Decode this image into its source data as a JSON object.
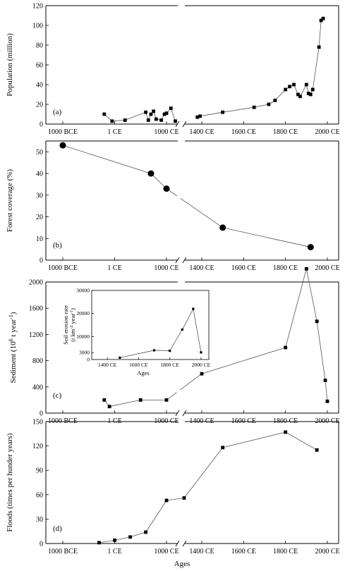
{
  "x_axis_title": "Ages",
  "x_tick_labels": [
    "1000 BCE",
    "1 CE",
    "1000 CE",
    "1400 CE",
    "1600 CE",
    "1800 CE",
    "2000 CE"
  ],
  "chart_data": [
    {
      "id": "a",
      "type": "line",
      "panel_label": "(a)",
      "ylabel": "Population (million)",
      "ylim": [
        0,
        120
      ],
      "yticks": [
        0,
        20,
        40,
        60,
        80,
        100,
        120
      ],
      "marker": "square",
      "series": [
        {
          "segment": "early",
          "points": [
            [
              -200,
              10
            ],
            [
              -50,
              3
            ],
            [
              200,
              4
            ],
            [
              600,
              12
            ],
            [
              650,
              4
            ],
            [
              700,
              10
            ],
            [
              750,
              13
            ],
            [
              800,
              5
            ],
            [
              900,
              4
            ],
            [
              960,
              10
            ],
            [
              1000,
              11
            ],
            [
              1050,
              16
            ],
            [
              1100,
              3
            ]
          ]
        },
        {
          "segment": "late",
          "points": [
            [
              1350,
              7
            ],
            [
              1380,
              8
            ],
            [
              1500,
              12
            ],
            [
              1650,
              17
            ],
            [
              1720,
              20
            ],
            [
              1750,
              24
            ],
            [
              1800,
              35
            ],
            [
              1820,
              38
            ],
            [
              1840,
              40
            ],
            [
              1860,
              30
            ],
            [
              1870,
              28
            ],
            [
              1900,
              40
            ],
            [
              1910,
              31
            ],
            [
              1920,
              30
            ],
            [
              1930,
              35
            ],
            [
              1960,
              78
            ],
            [
              1970,
              105
            ],
            [
              1980,
              107
            ]
          ]
        }
      ]
    },
    {
      "id": "b",
      "type": "line",
      "panel_label": "(b)",
      "ylabel": "Forest coverage (%)",
      "ylim": [
        0,
        55
      ],
      "yticks": [
        0,
        10,
        20,
        30,
        40,
        50
      ],
      "marker": "circle",
      "series": [
        {
          "segment": "all",
          "points": [
            [
              -1000,
              53
            ],
            [
              700,
              40
            ],
            [
              1000,
              33
            ],
            [
              1500,
              15
            ],
            [
              1920,
              6
            ]
          ]
        }
      ]
    },
    {
      "id": "c",
      "type": "line",
      "panel_label": "(c)",
      "ylabel": "Sediment (10",
      "ylabel_sup": "6",
      "ylabel_tail": " t year",
      "ylabel_sup2": "-1",
      "ylabel_end": ")",
      "ylim": [
        0,
        2000
      ],
      "yticks": [
        0,
        400,
        800,
        1200,
        1600,
        2000
      ],
      "marker": "square",
      "series": [
        {
          "segment": "all",
          "points": [
            [
              -200,
              200
            ],
            [
              -100,
              100
            ],
            [
              500,
              200
            ],
            [
              1000,
              200
            ],
            [
              1400,
              600
            ],
            [
              1800,
              1000
            ],
            [
              1900,
              2200
            ],
            [
              1950,
              1400
            ],
            [
              1990,
              500
            ],
            [
              2000,
              180
            ]
          ]
        }
      ],
      "inset": {
        "type": "line",
        "ylabel": "Soil erosion rate",
        "ylabel2": "(t km",
        "ylabel2_sup": "-2",
        "ylabel2_tail": " year",
        "ylabel2_sup2": "-1",
        "ylabel2_end": ")",
        "xlabel": "Ages",
        "xlim": [
          1300,
          2050
        ],
        "xticks": [
          1400,
          1600,
          1800,
          2000
        ],
        "xtick_labels": [
          "1400 CE",
          "1600 CE",
          "1800 CE",
          "2000 CE"
        ],
        "ylim": [
          0,
          30000
        ],
        "yticks": [
          0,
          3000,
          10000,
          20000,
          30000
        ],
        "ytick_labels": [
          "0",
          "3000",
          "10000",
          "20000",
          "30000"
        ],
        "points": [
          [
            1480,
            800
          ],
          [
            1700,
            4000
          ],
          [
            1800,
            3800
          ],
          [
            1880,
            13000
          ],
          [
            1950,
            22000
          ],
          [
            2000,
            3100
          ]
        ]
      }
    },
    {
      "id": "d",
      "type": "line",
      "panel_label": "(d)",
      "ylabel": "Floods (times per hunder years)",
      "ylim": [
        0,
        150
      ],
      "yticks": [
        0,
        30,
        60,
        90,
        120,
        150
      ],
      "marker": "square",
      "series": [
        {
          "segment": "all",
          "points": [
            [
              -300,
              1
            ],
            [
              1,
              4
            ],
            [
              300,
              8
            ],
            [
              600,
              14
            ],
            [
              1000,
              53
            ],
            [
              1200,
              56
            ],
            [
              1500,
              118
            ],
            [
              1800,
              137
            ],
            [
              1950,
              115
            ]
          ]
        }
      ]
    }
  ]
}
